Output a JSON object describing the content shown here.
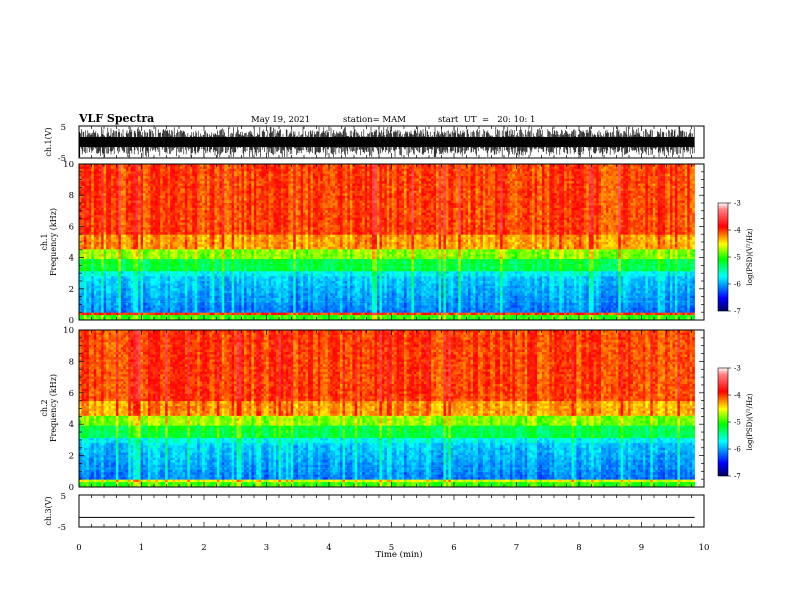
{
  "header": {
    "title": "VLF Spectra",
    "date": "May 19, 2021",
    "station": "station= MAM",
    "start": "start  UT  =   20: 10: 1"
  },
  "chart_data": [
    {
      "type": "line",
      "panel": "ch1-waveform",
      "ylabel": "ch.1(V)",
      "ylim": [
        -5,
        5
      ],
      "yticks": [
        "5",
        "-5"
      ],
      "xlim": [
        0,
        10
      ],
      "appearance": "dense black waveform filling most of the -5 to 5 V range across 0 to 9.85 min"
    },
    {
      "type": "heatmap",
      "panel": "ch1-spectrogram",
      "ylabel_top": "ch.1",
      "ylabel": "Frequency  (kHz)",
      "ylim": [
        0,
        10
      ],
      "yticks": [
        "0",
        "2",
        "4",
        "6",
        "8",
        "10"
      ],
      "xlim": [
        0,
        10
      ],
      "data_extent_x": [
        0,
        9.85
      ],
      "colorbar": {
        "label": "log(PSD)(V²/Hz)",
        "range": [
          -7,
          -3
        ],
        "ticks": [
          "-3",
          "-4",
          "-5",
          "-6",
          "-7"
        ],
        "colormap": [
          "#000080",
          "#0000ff",
          "#00ffff",
          "#00ff00",
          "#ffff00",
          "#ff0000",
          "#ffffff"
        ]
      },
      "appearance": "red/yellow above ~4.5 kHz, green band 3-4.5 kHz, cyan/blue 0.5-3 kHz, red line near 0.3 kHz"
    },
    {
      "type": "heatmap",
      "panel": "ch2-spectrogram",
      "ylabel_top": "ch.2",
      "ylabel": "Frequency  (kHz)",
      "ylim": [
        0,
        10
      ],
      "yticks": [
        "0",
        "2",
        "4",
        "6",
        "8",
        "10"
      ],
      "xlim": [
        0,
        10
      ],
      "data_extent_x": [
        0,
        9.85
      ],
      "colorbar": {
        "label": "log(PSD)(V²/Hz)",
        "range": [
          -7,
          -3
        ],
        "ticks": [
          "-3",
          "-4",
          "-5",
          "-6",
          "-7"
        ],
        "colormap": [
          "#000080",
          "#0000ff",
          "#00ffff",
          "#00ff00",
          "#ffff00",
          "#ff0000",
          "#ffffff"
        ]
      },
      "appearance": "red above ~4.5 kHz, green band 3-4.5 kHz, cyan/blue 0.5-3 kHz"
    },
    {
      "type": "line",
      "panel": "ch3-waveform",
      "ylabel": "ch.3(V)",
      "ylim": [
        -5,
        5
      ],
      "yticks": [
        "5",
        "-5"
      ],
      "xlim": [
        0,
        10
      ],
      "x": [
        0,
        9.85
      ],
      "y": [
        -2,
        -2
      ]
    }
  ],
  "x_axis": {
    "label": "Time  (min)",
    "ticks": [
      "0",
      "1",
      "2",
      "3",
      "4",
      "5",
      "6",
      "7",
      "8",
      "9",
      "10"
    ]
  }
}
